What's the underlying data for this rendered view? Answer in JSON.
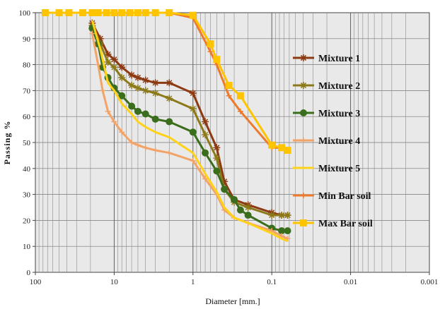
{
  "chart_data": {
    "type": "line",
    "xlabel": "Diameter [mm.]",
    "ylabel": "Passing %",
    "x_scale": "log",
    "x_reversed": true,
    "xlim": [
      100,
      0.001
    ],
    "ylim": [
      0,
      100
    ],
    "x_ticks": [
      100,
      10,
      1,
      0.1,
      0.01,
      0.001
    ],
    "x_tick_labels": [
      "100",
      "10",
      "1",
      "0.1",
      "0.01",
      "0.001"
    ],
    "y_ticks": [
      0,
      10,
      20,
      30,
      40,
      50,
      60,
      70,
      80,
      90,
      100
    ],
    "y_tick_labels": [
      "0",
      "10",
      "20",
      "30",
      "40",
      "50",
      "60",
      "70",
      "80",
      "90",
      "100"
    ],
    "grid": true,
    "legend_position": "right",
    "series": [
      {
        "name": "Mixture 1",
        "color": "#8B3A12",
        "marker": "star",
        "points": [
          [
            19,
            96
          ],
          [
            15,
            90
          ],
          [
            12,
            84
          ],
          [
            10,
            82
          ],
          [
            8,
            79
          ],
          [
            6,
            76
          ],
          [
            5,
            75
          ],
          [
            4,
            74
          ],
          [
            3,
            73
          ],
          [
            2,
            73
          ],
          [
            1,
            69
          ],
          [
            0.7,
            58
          ],
          [
            0.5,
            48
          ],
          [
            0.4,
            35
          ],
          [
            0.3,
            28
          ],
          [
            0.2,
            26
          ],
          [
            0.1,
            23
          ],
          [
            0.075,
            22
          ],
          [
            0.063,
            22
          ]
        ]
      },
      {
        "name": "Mixture 2",
        "color": "#8C7A1A",
        "marker": "star",
        "points": [
          [
            19,
            95
          ],
          [
            15,
            88
          ],
          [
            12,
            81
          ],
          [
            10,
            79
          ],
          [
            8,
            75
          ],
          [
            6,
            72
          ],
          [
            5,
            71
          ],
          [
            4,
            70
          ],
          [
            3,
            69
          ],
          [
            2,
            67
          ],
          [
            1,
            63
          ],
          [
            0.7,
            53
          ],
          [
            0.5,
            44
          ],
          [
            0.4,
            32
          ],
          [
            0.3,
            27
          ],
          [
            0.2,
            25
          ],
          [
            0.1,
            22
          ],
          [
            0.075,
            22
          ],
          [
            0.063,
            22
          ]
        ]
      },
      {
        "name": "Mixture 3",
        "color": "#3A6E1C",
        "marker": "circle",
        "points": [
          [
            19,
            94
          ],
          [
            16,
            88
          ],
          [
            14,
            79
          ],
          [
            12,
            75
          ],
          [
            10,
            71
          ],
          [
            8,
            68
          ],
          [
            6,
            64
          ],
          [
            5,
            62
          ],
          [
            4,
            61
          ],
          [
            3,
            59
          ],
          [
            2,
            58
          ],
          [
            1,
            54
          ],
          [
            0.7,
            46
          ],
          [
            0.5,
            39
          ],
          [
            0.4,
            32
          ],
          [
            0.3,
            28
          ],
          [
            0.25,
            24
          ],
          [
            0.2,
            22
          ],
          [
            0.1,
            17
          ],
          [
            0.075,
            16
          ],
          [
            0.063,
            16
          ]
        ]
      },
      {
        "name": "Mixture 4",
        "color": "#F2A468",
        "marker": "cross",
        "points": [
          [
            19,
            92
          ],
          [
            16,
            80
          ],
          [
            14,
            70
          ],
          [
            12,
            62
          ],
          [
            10,
            58
          ],
          [
            8,
            54
          ],
          [
            6,
            50
          ],
          [
            5,
            49
          ],
          [
            4,
            48
          ],
          [
            3,
            47
          ],
          [
            2,
            46
          ],
          [
            1,
            43
          ],
          [
            0.7,
            36
          ],
          [
            0.5,
            30
          ],
          [
            0.4,
            24
          ],
          [
            0.3,
            21
          ],
          [
            0.2,
            19
          ],
          [
            0.1,
            16
          ],
          [
            0.075,
            14
          ],
          [
            0.063,
            13
          ]
        ]
      },
      {
        "name": "Mixture 5",
        "color": "#FFD21A",
        "marker": "none",
        "points": [
          [
            19,
            97
          ],
          [
            15,
            86
          ],
          [
            12,
            73
          ],
          [
            10,
            70
          ],
          [
            8,
            65
          ],
          [
            6,
            61
          ],
          [
            5,
            58
          ],
          [
            4,
            56
          ],
          [
            3,
            54
          ],
          [
            2,
            52
          ],
          [
            1,
            46
          ],
          [
            0.7,
            38
          ],
          [
            0.5,
            31
          ],
          [
            0.4,
            25
          ],
          [
            0.3,
            21
          ],
          [
            0.2,
            19
          ],
          [
            0.1,
            15
          ],
          [
            0.075,
            13
          ],
          [
            0.063,
            12
          ]
        ]
      },
      {
        "name": "Min Bar soil",
        "color": "#EE7A2C",
        "marker": "cross",
        "points": [
          [
            19,
            100
          ],
          [
            2,
            100
          ],
          [
            1,
            98
          ],
          [
            0.6,
            85
          ],
          [
            0.5,
            80
          ],
          [
            0.35,
            68
          ],
          [
            0.25,
            62
          ],
          [
            0.1,
            48
          ],
          [
            0.075,
            48
          ],
          [
            0.063,
            47
          ]
        ]
      },
      {
        "name": "Max Bar soil",
        "color": "#FFC400",
        "marker": "square",
        "points": [
          [
            75,
            100
          ],
          [
            50,
            100
          ],
          [
            37.5,
            100
          ],
          [
            25,
            100
          ],
          [
            19,
            100
          ],
          [
            16,
            100
          ],
          [
            12.5,
            100
          ],
          [
            10,
            100
          ],
          [
            8,
            100
          ],
          [
            6.3,
            100
          ],
          [
            5,
            100
          ],
          [
            4,
            100
          ],
          [
            3,
            100
          ],
          [
            2,
            100
          ],
          [
            1,
            99
          ],
          [
            0.6,
            88
          ],
          [
            0.5,
            82
          ],
          [
            0.35,
            72
          ],
          [
            0.25,
            68
          ],
          [
            0.1,
            49
          ],
          [
            0.075,
            48
          ],
          [
            0.063,
            47
          ]
        ]
      }
    ]
  }
}
